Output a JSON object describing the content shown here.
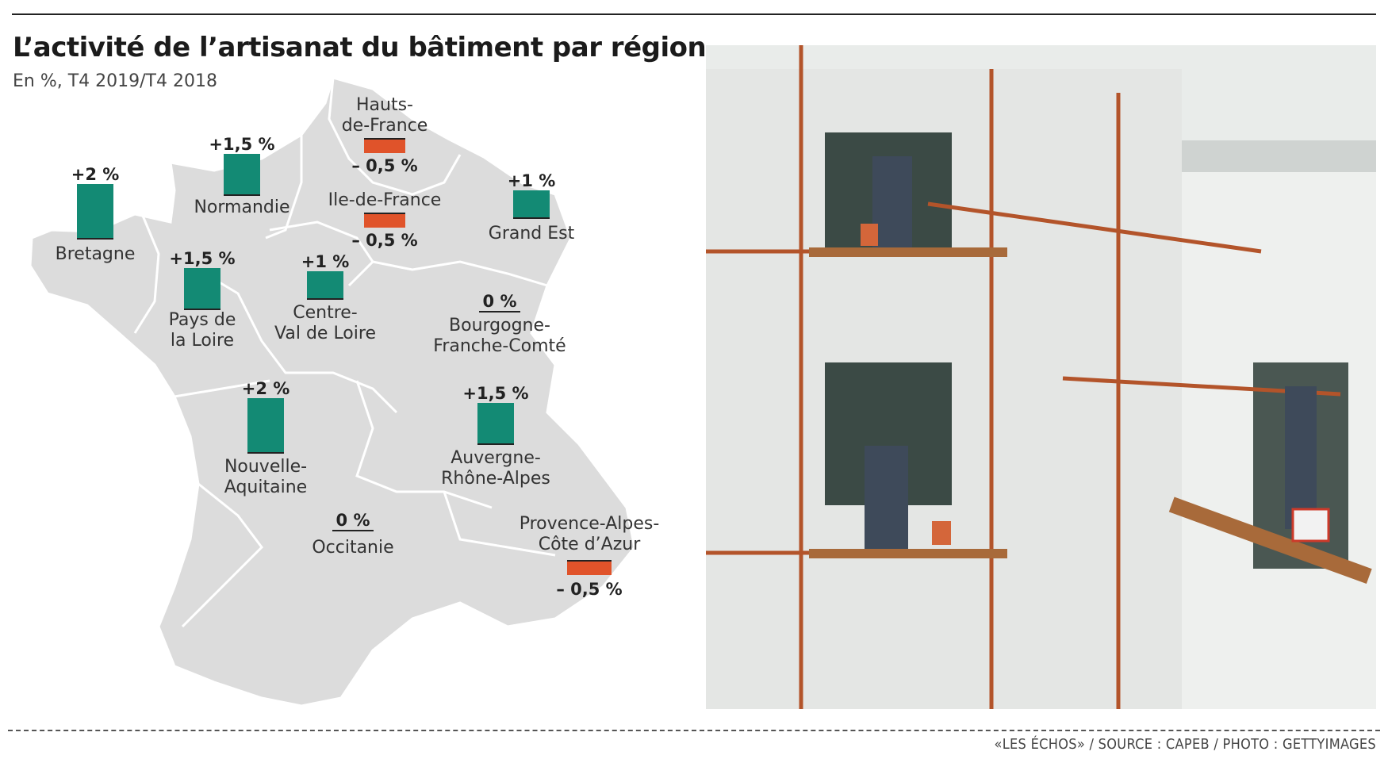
{
  "header": {
    "title": "L’activité de l’artisanat du bâtiment par région",
    "subtitle": "En %, T4 2019/T4 2018"
  },
  "colors": {
    "positive": "#138a74",
    "negative": "#e0532a",
    "map_fill": "#dcdcdc",
    "map_border": "#ffffff"
  },
  "regions": [
    {
      "id": "bretagne",
      "name": "Bretagne",
      "value": 2,
      "label": "+2 %"
    },
    {
      "id": "normandie",
      "name": "Normandie",
      "value": 1.5,
      "label": "+1,5 %"
    },
    {
      "id": "hauts-de-france",
      "name": "Hauts-\nde-France",
      "value": -0.5,
      "label": "– 0,5 %"
    },
    {
      "id": "ile-de-france",
      "name": "Ile-de-France",
      "value": -0.5,
      "label": "– 0,5 %"
    },
    {
      "id": "grand-est",
      "name": "Grand Est",
      "value": 1,
      "label": "+1 %"
    },
    {
      "id": "pays-de-la-loire",
      "name": "Pays de\nla Loire",
      "value": 1.5,
      "label": "+1,5 %"
    },
    {
      "id": "centre-val-de-loire",
      "name": "Centre-\nVal de Loire",
      "value": 1,
      "label": "+1 %"
    },
    {
      "id": "bourgogne-franche-comte",
      "name": "Bourgogne-\nFranche-Comté",
      "value": 0,
      "label": "0 %"
    },
    {
      "id": "nouvelle-aquitaine",
      "name": "Nouvelle-\nAquitaine",
      "value": 2,
      "label": "+2 %"
    },
    {
      "id": "auvergne-rhone-alpes",
      "name": "Auvergne-\nRhône-Alpes",
      "value": 1.5,
      "label": "+1,5 %"
    },
    {
      "id": "occitanie",
      "name": "Occitanie",
      "value": 0,
      "label": "0 %"
    },
    {
      "id": "paca",
      "name": "Provence-Alpes-\nCôte d’Azur",
      "value": -0.5,
      "label": "– 0,5 %"
    }
  ],
  "footer": {
    "credit": "«LES ÉCHOS» / SOURCE : CAPEB / PHOTO : GETTYIMAGES"
  }
}
